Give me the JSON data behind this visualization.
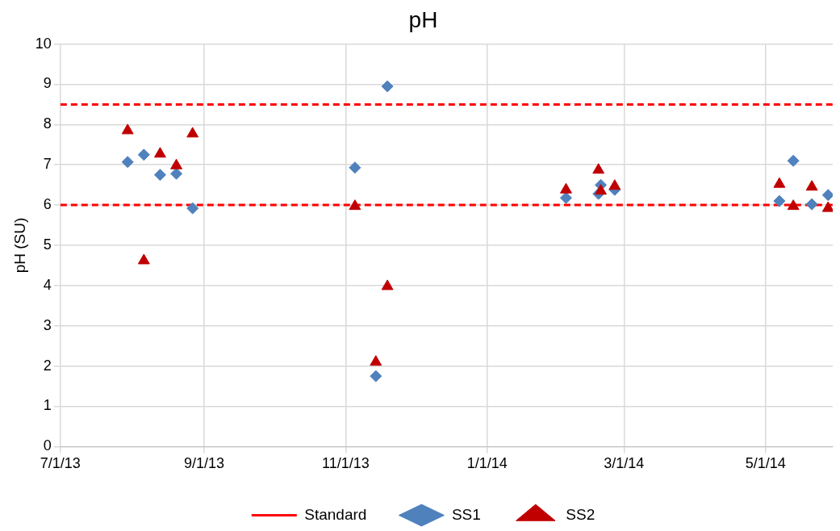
{
  "chart_data": {
    "type": "scatter",
    "title": "pH",
    "ylabel": "pH (SU)",
    "xlim": [
      "2013-07-01",
      "2014-05-30"
    ],
    "xticks": [
      {
        "value": "2013-07-01",
        "label": "7/1/13"
      },
      {
        "value": "2013-09-01",
        "label": "9/1/13"
      },
      {
        "value": "2013-11-01",
        "label": "11/1/13"
      },
      {
        "value": "2014-01-01",
        "label": "1/1/14"
      },
      {
        "value": "2014-03-01",
        "label": "3/1/14"
      },
      {
        "value": "2014-05-01",
        "label": "5/1/14"
      }
    ],
    "ylim": [
      0,
      10
    ],
    "yticks": [
      0,
      1,
      2,
      3,
      4,
      5,
      6,
      7,
      8,
      9,
      10
    ],
    "grid": true,
    "legend": "bottom",
    "ref_lines": [
      {
        "axis": "y",
        "value": 8.5,
        "label": "Standard",
        "color": "#ff0000",
        "line_style": "dashed"
      },
      {
        "axis": "y",
        "value": 6,
        "color": "#ff0000",
        "line_style": "dashed"
      }
    ],
    "x": [
      "2013-07-30",
      "2013-08-06",
      "2013-08-13",
      "2013-08-20",
      "2013-08-27",
      "2013-11-05",
      "2013-11-14",
      "2013-11-19",
      "2014-02-04",
      "2014-02-18",
      "2014-02-19",
      "2014-02-25",
      "2014-05-07",
      "2014-05-13",
      "2014-05-21",
      "2014-05-28"
    ],
    "series": [
      {
        "name": "SS1",
        "color": "#4f81bd",
        "marker": "diamond",
        "values": [
          7.07,
          7.25,
          6.75,
          6.78,
          5.92,
          6.93,
          1.75,
          8.95,
          6.18,
          6.28,
          6.5,
          6.38,
          6.1,
          7.1,
          6.02,
          6.25
        ]
      },
      {
        "name": "SS2",
        "color": "#c00000",
        "marker": "triangle",
        "values": [
          7.85,
          4.62,
          7.27,
          6.98,
          7.77,
          5.97,
          2.1,
          3.98,
          6.38,
          6.87,
          6.35,
          6.47,
          6.52,
          5.97,
          6.45,
          5.92
        ]
      }
    ]
  }
}
